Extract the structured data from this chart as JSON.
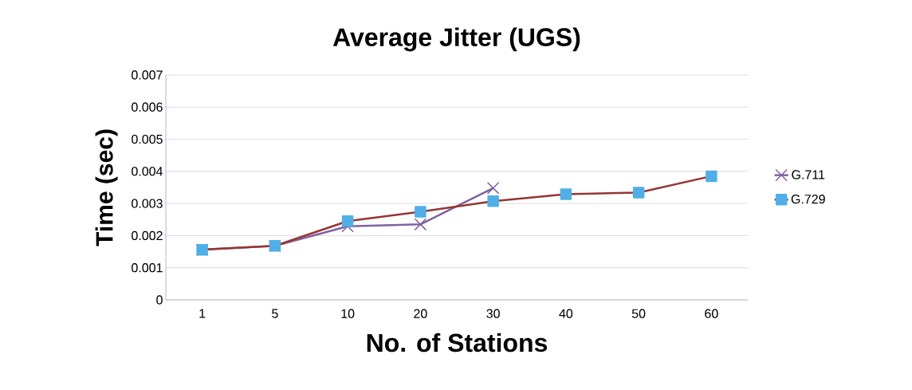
{
  "chart_data": {
    "type": "line",
    "title": "Average Jitter (UGS)",
    "xlabel": "No. of Stations",
    "ylabel": "Time (sec)",
    "categories": [
      "1",
      "5",
      "10",
      "20",
      "30",
      "40",
      "50",
      "60"
    ],
    "series": [
      {
        "name": "G.711",
        "color": "#7f62a0",
        "marker": "cross",
        "values": [
          0.00156,
          0.00168,
          0.00229,
          0.00235,
          0.00348,
          null,
          null,
          null
        ]
      },
      {
        "name": "G.729",
        "color": "#943634",
        "marker": "square",
        "values": [
          0.00156,
          0.00168,
          0.00245,
          0.00274,
          0.00307,
          0.00329,
          0.00334,
          0.00385
        ]
      }
    ],
    "ylim": [
      0,
      0.007
    ],
    "yticks": [
      0,
      0.001,
      0.002,
      0.003,
      0.004,
      0.005,
      0.006,
      0.007
    ],
    "grid": "y",
    "legend": "right",
    "line_style": "solid"
  }
}
